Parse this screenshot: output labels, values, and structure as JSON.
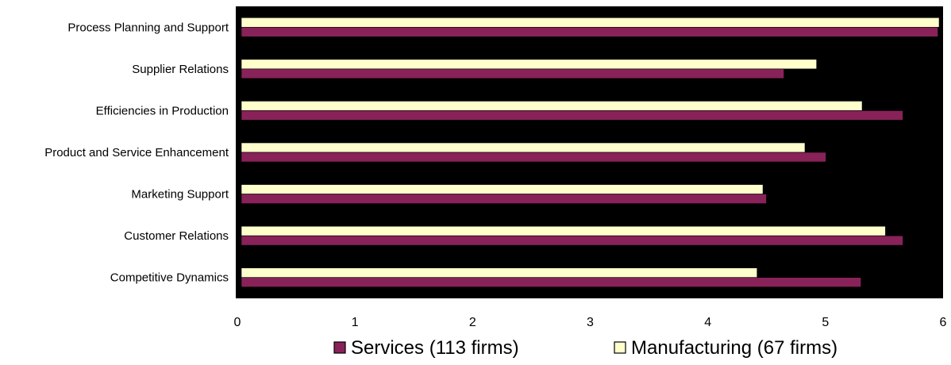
{
  "chart_data": {
    "type": "bar",
    "orientation": "horizontal",
    "categories": [
      "Process Planning and Support",
      "Supplier Relations",
      "Efficiencies in Production",
      "Product and Service Enhancement",
      "Marketing Support",
      "Customer Relations",
      "Competitive Dynamics"
    ],
    "series": [
      {
        "name": "Manufacturing (67 firms)",
        "color": "#ffffcc",
        "values": [
          5.98,
          4.93,
          5.32,
          4.83,
          4.47,
          5.52,
          4.42
        ]
      },
      {
        "name": "Services (113 firms)",
        "color": "#882259",
        "values": [
          5.97,
          4.65,
          5.67,
          5.01,
          4.5,
          5.67,
          5.31
        ]
      }
    ],
    "legend_order": [
      "Services (113 firms)",
      "Manufacturing (67 firms)"
    ],
    "xlim": [
      0,
      6
    ],
    "xticks": [
      "0",
      "1",
      "2",
      "3",
      "4",
      "5",
      "6"
    ],
    "xlabel": "",
    "ylabel": "",
    "plot_background": "#000000",
    "grid": false,
    "legend_position": "bottom"
  }
}
